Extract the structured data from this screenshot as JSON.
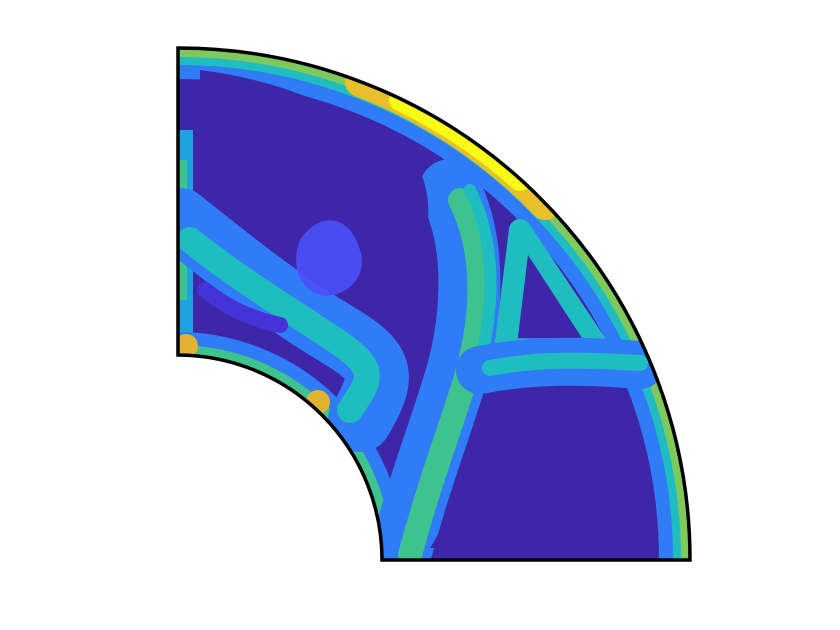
{
  "figure": {
    "type": "topology-optimization-field",
    "domain_shape": "quarter-annulus",
    "colormap": "parula",
    "colormap_stops": [
      "#3e26a8",
      "#4433d6",
      "#4b50f8",
      "#2f7cf6",
      "#1ca3e0",
      "#1fbdc0",
      "#5fca78",
      "#b9c23f",
      "#e2b330",
      "#f9fb14"
    ],
    "background_color": "#ffffff",
    "outline_color": "#000000",
    "features": [
      {
        "name": "outer-rim-high-density-band",
        "level": 0.75
      },
      {
        "name": "upper-rim-peak-band",
        "level": 1.0
      },
      {
        "name": "central-curved-strut",
        "level": 0.55
      },
      {
        "name": "inner-left-branch-strut",
        "level": 0.45
      },
      {
        "name": "right-horizontal-strut",
        "level": 0.45
      },
      {
        "name": "triangular-void-right",
        "level": 0.0
      },
      {
        "name": "large-void-upper-left",
        "level": 0.0
      },
      {
        "name": "large-void-bottom-right",
        "level": 0.0
      },
      {
        "name": "inner-arc-corner-highlights",
        "level": 0.85
      }
    ]
  }
}
